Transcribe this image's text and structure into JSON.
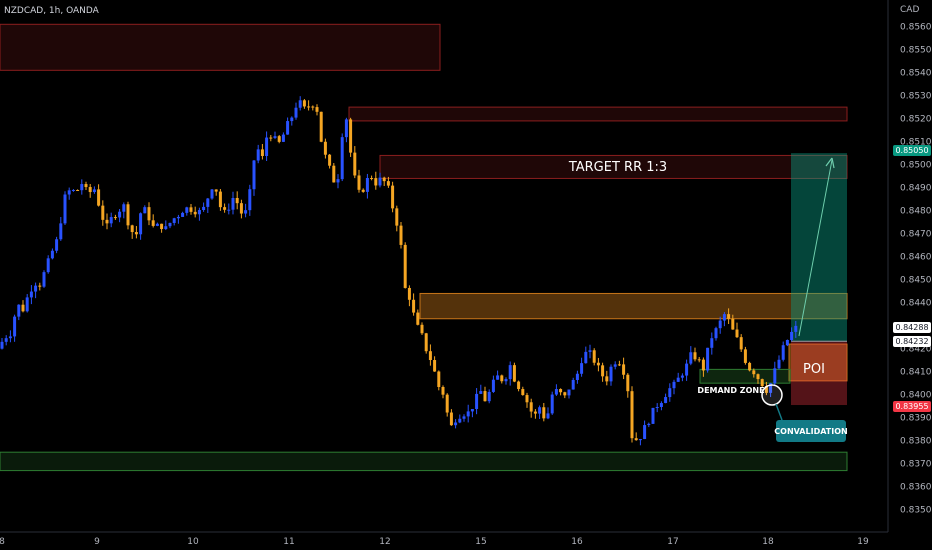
{
  "header": {
    "symbol": "NZDCAD, 1h, OANDA",
    "currency": "CAD"
  },
  "colors": {
    "background": "#000000",
    "bull": "#2952ff",
    "bear": "#f5a623",
    "supply_zone": "#8b1e1e",
    "orange_zone": "#c8761a",
    "green_zone": "#2e7d32",
    "profit": "#0d6b5a",
    "stop": "#7a1e1e",
    "target_badge": "#089981",
    "entry_badge": "#ffffff",
    "stop_badge": "#f23645",
    "callout": "#127a86"
  },
  "chart_data": {
    "type": "candlestick",
    "symbol": "NZDCAD",
    "timeframe": "1h",
    "broker": "OANDA",
    "quote_currency": "CAD",
    "y_axis": {
      "range": [
        0.8349,
        0.8562
      ],
      "ticks": [
        "0.85600",
        "0.85500",
        "0.85400",
        "0.85300",
        "0.85200",
        "0.85100",
        "0.85000",
        "0.84900",
        "0.84800",
        "0.84700",
        "0.84600",
        "0.84500",
        "0.84400",
        "0.84300",
        "0.84200",
        "0.84100",
        "0.84000",
        "0.83900",
        "0.83800",
        "0.83700",
        "0.83600",
        "0.83500"
      ]
    },
    "x_axis": {
      "ticks": [
        "8",
        "9",
        "10",
        "11",
        "12",
        "15",
        "16",
        "17",
        "18",
        "19"
      ]
    },
    "price_labels": {
      "target": "0.85050",
      "current": "0.84288",
      "entry": "0.84232",
      "stop": "0.83955"
    },
    "zones": [
      {
        "kind": "supply",
        "low": 0.8541,
        "high": 0.8561
      },
      {
        "kind": "supply",
        "low": 0.8519,
        "high": 0.8525
      },
      {
        "kind": "supply",
        "low": 0.8494,
        "high": 0.8504,
        "label": "TARGET RR 1:3"
      },
      {
        "kind": "orange",
        "low": 0.8433,
        "high": 0.8444
      },
      {
        "kind": "poi",
        "low": 0.8406,
        "high": 0.8422,
        "label": "POI"
      },
      {
        "kind": "demand",
        "low": 0.8405,
        "high": 0.8411,
        "label": "DEMAND ZONE"
      },
      {
        "kind": "green",
        "low": 0.8367,
        "high": 0.8375
      }
    ],
    "position": {
      "type": "long",
      "target": 0.8505,
      "entry": 0.84232,
      "stop": 0.83955,
      "ratio": "RR 1:3"
    },
    "annotations": [
      "TARGET RR 1:3",
      "POI",
      "DEMAND ZONE",
      "CONVALIDATION"
    ],
    "price_path": [
      [
        0,
        0.842
      ],
      [
        4,
        0.8426
      ],
      [
        8,
        0.8425
      ],
      [
        12,
        0.8428
      ],
      [
        17,
        0.844
      ],
      [
        22,
        0.8436
      ],
      [
        28,
        0.8443
      ],
      [
        34,
        0.8449
      ],
      [
        40,
        0.8448
      ],
      [
        46,
        0.8455
      ],
      [
        52,
        0.8462
      ],
      [
        58,
        0.8468
      ],
      [
        64,
        0.8485
      ],
      [
        70,
        0.8489
      ],
      [
        76,
        0.8488
      ],
      [
        82,
        0.8492
      ],
      [
        88,
        0.8487
      ],
      [
        94,
        0.849
      ],
      [
        100,
        0.8481
      ],
      [
        106,
        0.8472
      ],
      [
        112,
        0.8477
      ],
      [
        118,
        0.848
      ],
      [
        124,
        0.8482
      ],
      [
        130,
        0.8472
      ],
      [
        136,
        0.8469
      ],
      [
        142,
        0.8482
      ],
      [
        148,
        0.8478
      ],
      [
        154,
        0.8472
      ],
      [
        160,
        0.8474
      ],
      [
        166,
        0.8472
      ],
      [
        172,
        0.8476
      ],
      [
        178,
        0.8478
      ],
      [
        184,
        0.8481
      ],
      [
        190,
        0.8481
      ],
      [
        196,
        0.848
      ],
      [
        202,
        0.8479
      ],
      [
        208,
        0.8486
      ],
      [
        214,
        0.8493
      ],
      [
        220,
        0.8482
      ],
      [
        226,
        0.8478
      ],
      [
        232,
        0.8486
      ],
      [
        238,
        0.8483
      ],
      [
        244,
        0.8476
      ],
      [
        250,
        0.8488
      ],
      [
        256,
        0.8509
      ],
      [
        262,
        0.8502
      ],
      [
        268,
        0.8515
      ],
      [
        274,
        0.8511
      ],
      [
        280,
        0.8509
      ],
      [
        286,
        0.8516
      ],
      [
        292,
        0.8521
      ],
      [
        298,
        0.8528
      ],
      [
        304,
        0.8524
      ],
      [
        310,
        0.8526
      ],
      [
        316,
        0.8527
      ],
      [
        322,
        0.8508
      ],
      [
        328,
        0.85
      ],
      [
        334,
        0.8493
      ],
      [
        340,
        0.8496
      ],
      [
        344,
        0.8528
      ],
      [
        348,
        0.8515
      ],
      [
        352,
        0.85
      ],
      [
        358,
        0.8487
      ],
      [
        364,
        0.849
      ],
      [
        370,
        0.8496
      ],
      [
        376,
        0.8492
      ],
      [
        382,
        0.8494
      ],
      [
        388,
        0.849
      ],
      [
        394,
        0.8479
      ],
      [
        400,
        0.847
      ],
      [
        404,
        0.8447
      ],
      [
        410,
        0.8442
      ],
      [
        416,
        0.843
      ],
      [
        420,
        0.8428
      ],
      [
        426,
        0.842
      ],
      [
        432,
        0.8414
      ],
      [
        438,
        0.8404
      ],
      [
        444,
        0.84
      ],
      [
        450,
        0.8385
      ],
      [
        456,
        0.839
      ],
      [
        462,
        0.8392
      ],
      [
        468,
        0.8392
      ],
      [
        474,
        0.8396
      ],
      [
        480,
        0.8402
      ],
      [
        486,
        0.8397
      ],
      [
        492,
        0.8404
      ],
      [
        498,
        0.8408
      ],
      [
        504,
        0.8406
      ],
      [
        510,
        0.8413
      ],
      [
        516,
        0.8405
      ],
      [
        522,
        0.8402
      ],
      [
        528,
        0.8396
      ],
      [
        534,
        0.839
      ],
      [
        540,
        0.8395
      ],
      [
        546,
        0.8388
      ],
      [
        552,
        0.84
      ],
      [
        558,
        0.8402
      ],
      [
        564,
        0.8398
      ],
      [
        570,
        0.8404
      ],
      [
        576,
        0.8407
      ],
      [
        582,
        0.8416
      ],
      [
        588,
        0.8419
      ],
      [
        594,
        0.8415
      ],
      [
        600,
        0.841
      ],
      [
        606,
        0.8406
      ],
      [
        612,
        0.8413
      ],
      [
        618,
        0.8416
      ],
      [
        624,
        0.841
      ],
      [
        628,
        0.8402
      ],
      [
        632,
        0.8382
      ],
      [
        638,
        0.838
      ],
      [
        644,
        0.8385
      ],
      [
        650,
        0.839
      ],
      [
        656,
        0.8395
      ],
      [
        662,
        0.8398
      ],
      [
        668,
        0.8402
      ],
      [
        674,
        0.8404
      ],
      [
        680,
        0.8408
      ],
      [
        686,
        0.8412
      ],
      [
        692,
        0.8418
      ],
      [
        698,
        0.8415
      ],
      [
        704,
        0.8411
      ],
      [
        710,
        0.8424
      ],
      [
        716,
        0.8428
      ],
      [
        722,
        0.8433
      ],
      [
        726,
        0.8436
      ],
      [
        730,
        0.843
      ],
      [
        736,
        0.8425
      ],
      [
        742,
        0.8419
      ],
      [
        748,
        0.8412
      ],
      [
        754,
        0.841
      ],
      [
        760,
        0.8406
      ],
      [
        764,
        0.8404
      ],
      [
        768,
        0.8401
      ],
      [
        772,
        0.8407
      ],
      [
        778,
        0.8414
      ],
      [
        784,
        0.8421
      ],
      [
        790,
        0.8426
      ],
      [
        796,
        0.8429
      ],
      [
        800,
        0.8429
      ]
    ]
  },
  "callout": {
    "label": "CONVALIDATION"
  }
}
